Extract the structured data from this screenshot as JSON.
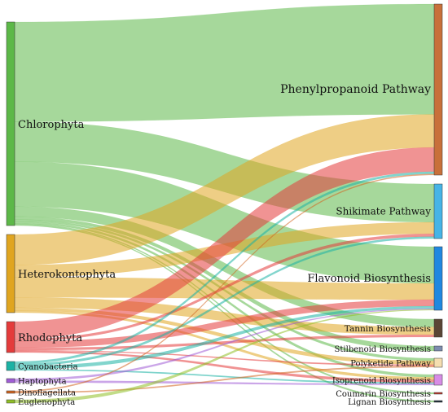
{
  "diagram": {
    "type": "sankey",
    "sources": [
      {
        "id": "chl",
        "label": "Chlorophyta",
        "color": "#5cb848"
      },
      {
        "id": "het",
        "label": "Heterokontophyta",
        "color": "#e0a520"
      },
      {
        "id": "rho",
        "label": "Rhodophyta",
        "color": "#e43b3b"
      },
      {
        "id": "cya",
        "label": "Cyanobacteria",
        "color": "#1bb2a4"
      },
      {
        "id": "hap",
        "label": "Haptophyta",
        "color": "#a05cd6"
      },
      {
        "id": "din",
        "label": "Dinoflagellata",
        "color": "#d1641f"
      },
      {
        "id": "eug",
        "label": "Euglenophyta",
        "color": "#8fbf26"
      }
    ],
    "targets": [
      {
        "id": "phe",
        "label": "Phenylpropanoid Pathway",
        "color": "#c8703a"
      },
      {
        "id": "shi",
        "label": "Shikimate Pathway",
        "color": "#46b4e6"
      },
      {
        "id": "fla",
        "label": "Flavonoid Biosynthesis",
        "color": "#1f88e0"
      },
      {
        "id": "tan",
        "label": "Tannin Biosynthesis",
        "color": "#5a4535"
      },
      {
        "id": "sti",
        "label": "Stilbenoid Biosynthesis",
        "color": "#7d8db0"
      },
      {
        "id": "pol",
        "label": "Polyketide Pathway",
        "color": "#f5deb0"
      },
      {
        "id": "iso",
        "label": "Isoprenoid Biosynthesis",
        "color": "#d78ce6"
      },
      {
        "id": "cou",
        "label": "Coumarin Biosynthesis",
        "color": "#c0392b"
      },
      {
        "id": "lig",
        "label": "Lignan Biosynthesis",
        "color": "#1e2e3a"
      }
    ],
    "flows": [
      {
        "source": "chl",
        "target": "phe",
        "value": 100
      },
      {
        "source": "chl",
        "target": "shi",
        "value": 40
      },
      {
        "source": "chl",
        "target": "fla",
        "value": 45
      },
      {
        "source": "chl",
        "target": "tan",
        "value": 10
      },
      {
        "source": "chl",
        "target": "sti",
        "value": 3
      },
      {
        "source": "chl",
        "target": "pol",
        "value": 2
      },
      {
        "source": "chl",
        "target": "iso",
        "value": 2
      },
      {
        "source": "chl",
        "target": "cou",
        "value": 1
      },
      {
        "source": "chl",
        "target": "lig",
        "value": 1
      },
      {
        "source": "het",
        "target": "phe",
        "value": 30
      },
      {
        "source": "het",
        "target": "shi",
        "value": 12
      },
      {
        "source": "het",
        "target": "fla",
        "value": 20
      },
      {
        "source": "het",
        "target": "tan",
        "value": 10
      },
      {
        "source": "het",
        "target": "pol",
        "value": 3
      },
      {
        "source": "het",
        "target": "iso",
        "value": 2
      },
      {
        "source": "rho",
        "target": "phe",
        "value": 22
      },
      {
        "source": "rho",
        "target": "shi",
        "value": 3
      },
      {
        "source": "rho",
        "target": "fla",
        "value": 8
      },
      {
        "source": "rho",
        "target": "tan",
        "value": 3
      },
      {
        "source": "rho",
        "target": "iso",
        "value": 2
      },
      {
        "source": "rho",
        "target": "pol",
        "value": 1
      },
      {
        "source": "cya",
        "target": "fla",
        "value": 3
      },
      {
        "source": "cya",
        "target": "phe",
        "value": 2
      },
      {
        "source": "cya",
        "target": "shi",
        "value": 2
      },
      {
        "source": "cya",
        "target": "iso",
        "value": 1
      },
      {
        "source": "hap",
        "target": "fla",
        "value": 1
      },
      {
        "source": "hap",
        "target": "iso",
        "value": 1
      },
      {
        "source": "din",
        "target": "phe",
        "value": 1
      },
      {
        "source": "din",
        "target": "pol",
        "value": 1
      },
      {
        "source": "eug",
        "target": "fla",
        "value": 1
      }
    ]
  }
}
